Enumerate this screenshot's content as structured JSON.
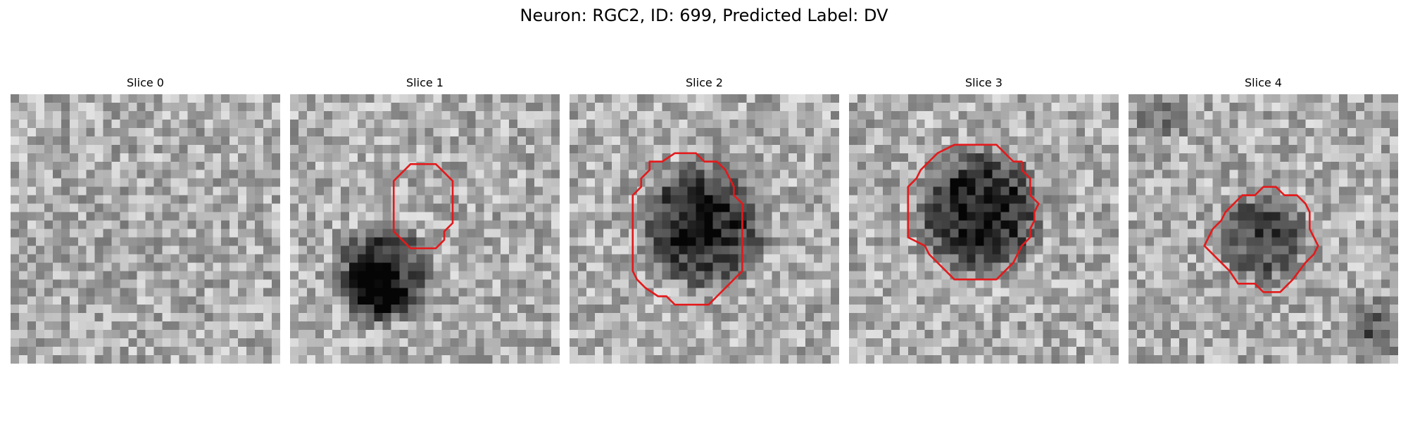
{
  "figure": {
    "title": "Neuron: RGC2, ID: 699, Predicted Label: DV"
  },
  "panels": [
    {
      "title": "Slice 0",
      "blob_darkness": 0.05,
      "contour_color": "#e31a1c",
      "has_contour": false
    },
    {
      "title": "Slice 1",
      "blob_darkness": 0.55,
      "contour_color": "#e31a1c",
      "has_contour": true
    },
    {
      "title": "Slice 2",
      "blob_darkness": 0.6,
      "contour_color": "#e31a1c",
      "has_contour": true
    },
    {
      "title": "Slice 3",
      "blob_darkness": 0.62,
      "contour_color": "#e31a1c",
      "has_contour": true
    },
    {
      "title": "Slice 4",
      "blob_darkness": 0.45,
      "contour_color": "#e31a1c",
      "has_contour": true
    }
  ]
}
